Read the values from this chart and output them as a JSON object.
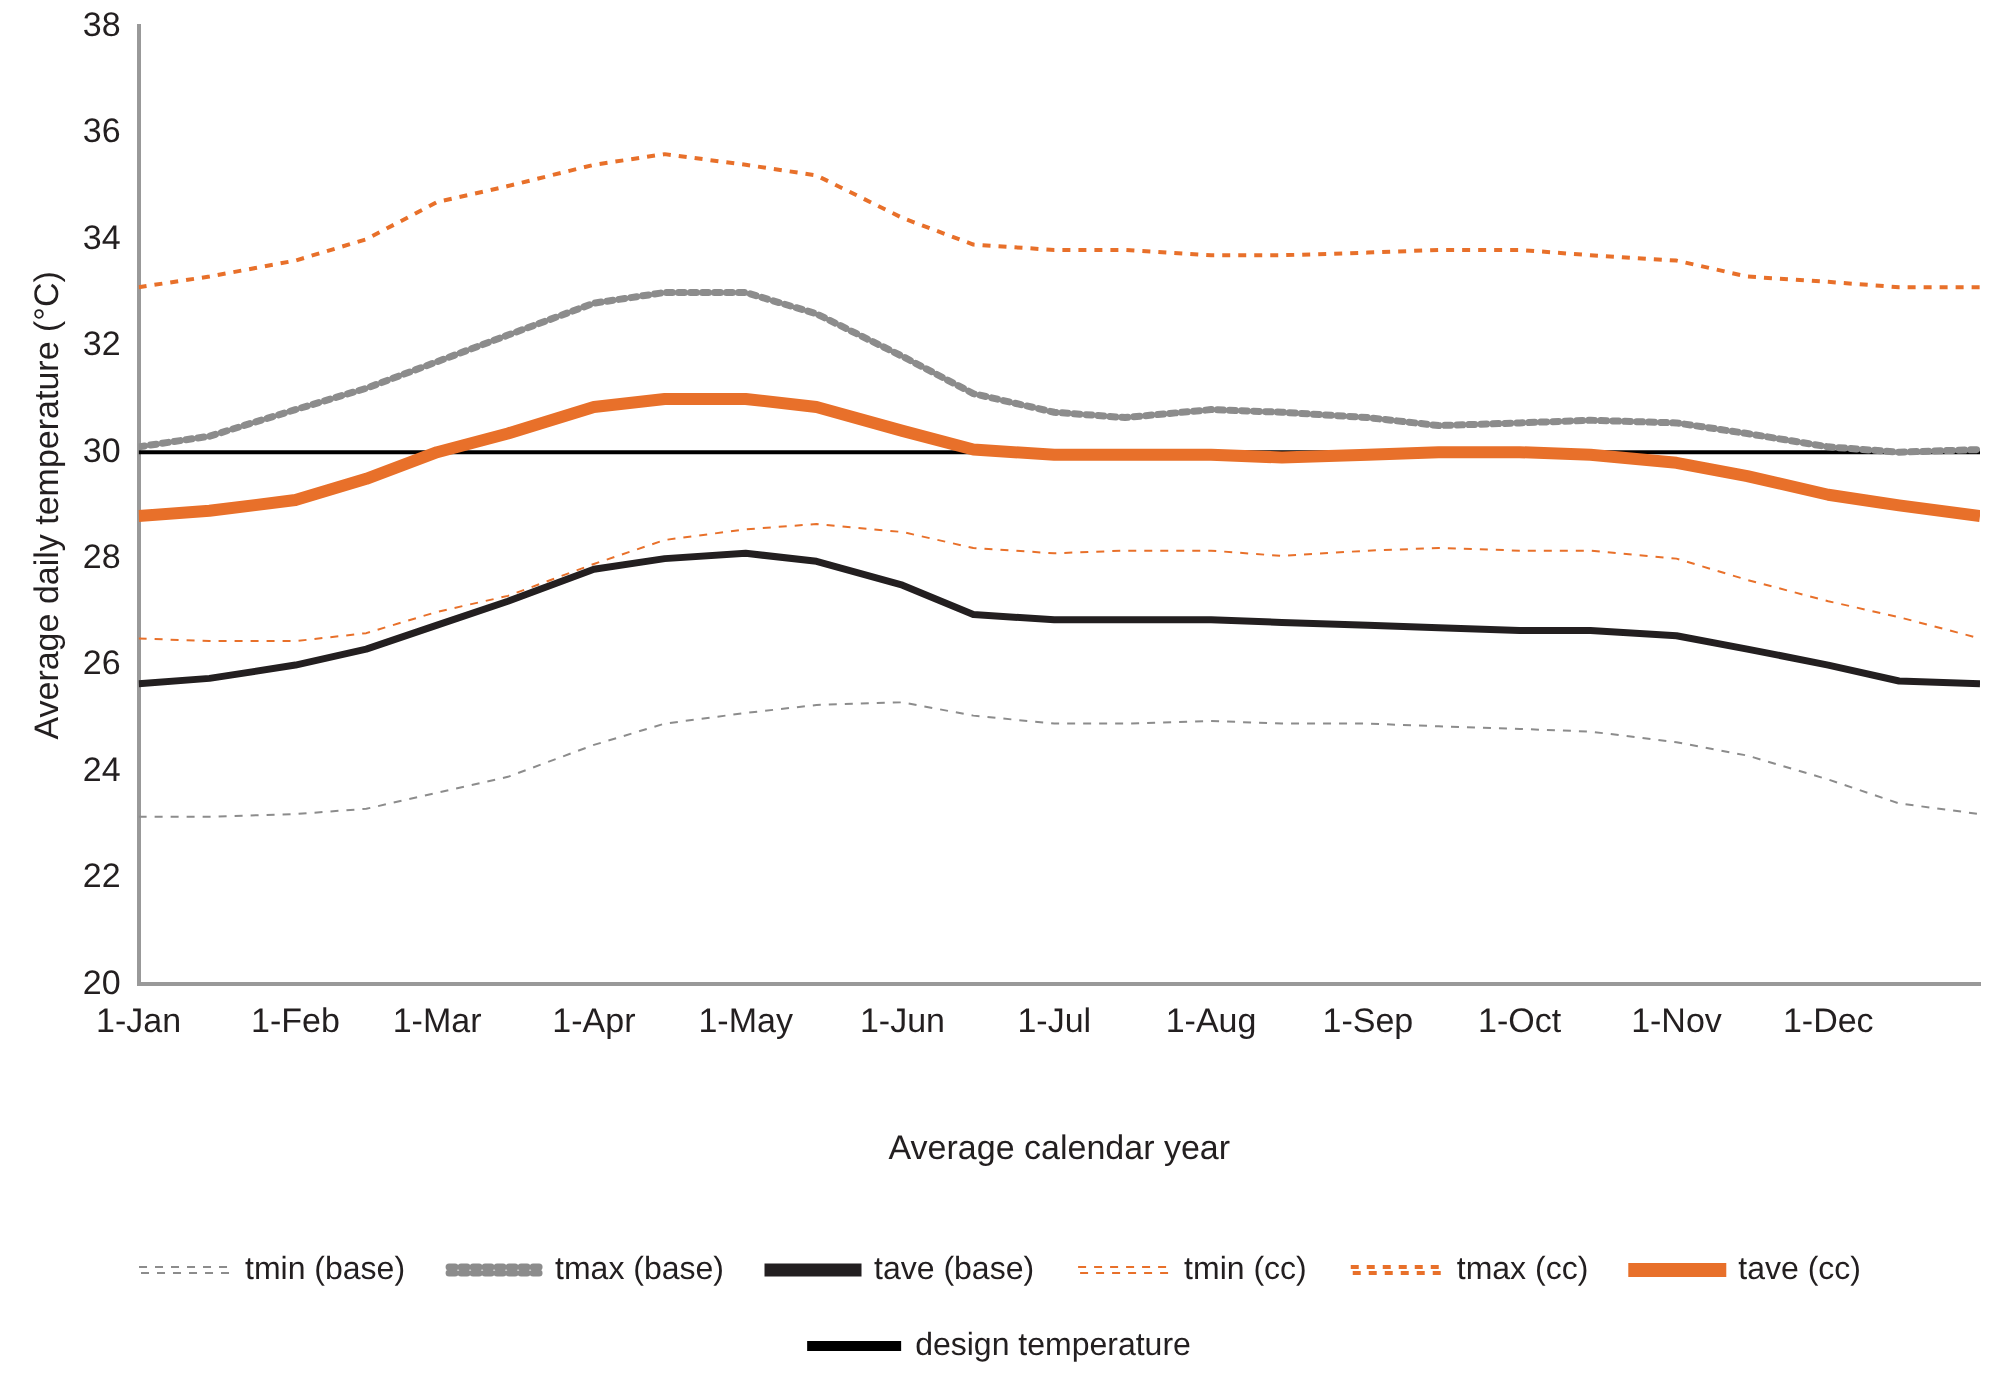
{
  "chart_data": {
    "type": "line",
    "xlabel": "Average calendar year",
    "ylabel": "Average daily temperature (°C)",
    "x": [
      "--01-01",
      "--01-15",
      "--02-01",
      "--02-15",
      "--03-01",
      "--03-15",
      "--04-01",
      "--04-15",
      "--05-01",
      "--05-15",
      "--06-01",
      "--06-15",
      "--07-01",
      "--07-15",
      "--08-01",
      "--08-15",
      "--09-01",
      "--09-15",
      "--10-01",
      "--10-15",
      "--11-01",
      "--11-15",
      "--12-01",
      "--12-15",
      "--12-31"
    ],
    "xlim": [
      "--01-01",
      "--12-31"
    ],
    "xticks": [
      {
        "value": "--01-01",
        "label": "1-Jan"
      },
      {
        "value": "--02-01",
        "label": "1-Feb"
      },
      {
        "value": "--03-01",
        "label": "1-Mar"
      },
      {
        "value": "--04-01",
        "label": "1-Apr"
      },
      {
        "value": "--05-01",
        "label": "1-May"
      },
      {
        "value": "--06-01",
        "label": "1-Jun"
      },
      {
        "value": "--07-01",
        "label": "1-Jul"
      },
      {
        "value": "--08-01",
        "label": "1-Aug"
      },
      {
        "value": "--09-01",
        "label": "1-Sep"
      },
      {
        "value": "--10-01",
        "label": "1-Oct"
      },
      {
        "value": "--11-01",
        "label": "1-Nov"
      },
      {
        "value": "--12-01",
        "label": "1-Dec"
      }
    ],
    "ylim": [
      20,
      38
    ],
    "yticks": [
      20,
      22,
      24,
      26,
      28,
      30,
      32,
      34,
      36,
      38
    ],
    "grid": false,
    "legend": "bottom",
    "marker": "none",
    "series": [
      {
        "name": "tmin (base)",
        "color": "#8c8c8c",
        "line_style": "dashed",
        "values": [
          23.15,
          23.15,
          23.2,
          23.3,
          23.6,
          23.9,
          24.5,
          24.9,
          25.1,
          25.25,
          25.3,
          25.05,
          24.9,
          24.9,
          24.95,
          24.9,
          24.9,
          24.85,
          24.8,
          24.75,
          24.55,
          24.3,
          23.85,
          23.4,
          23.2
        ]
      },
      {
        "name": "tmax (base)",
        "color": "#8c8c8c",
        "line_style": "dotted",
        "values": [
          30.1,
          30.3,
          30.8,
          31.2,
          31.7,
          32.2,
          32.8,
          33.0,
          33.0,
          32.6,
          31.8,
          31.1,
          30.75,
          30.65,
          30.8,
          30.75,
          30.65,
          30.5,
          30.55,
          30.6,
          30.55,
          30.35,
          30.1,
          30.0,
          30.05
        ]
      },
      {
        "name": "tave (base)",
        "color": "#231f20",
        "line_style": "solid",
        "values": [
          25.65,
          25.75,
          26.0,
          26.3,
          26.75,
          27.2,
          27.8,
          28.0,
          28.1,
          27.95,
          27.5,
          26.95,
          26.85,
          26.85,
          26.85,
          26.8,
          26.75,
          26.7,
          26.65,
          26.65,
          26.55,
          26.3,
          26.0,
          25.7,
          25.65
        ]
      },
      {
        "name": "tmin (cc)",
        "color": "#e8702a",
        "line_style": "dashed",
        "values": [
          26.5,
          26.45,
          26.45,
          26.6,
          27.0,
          27.3,
          27.9,
          28.35,
          28.55,
          28.65,
          28.5,
          28.2,
          28.1,
          28.15,
          28.15,
          28.05,
          28.15,
          28.2,
          28.15,
          28.15,
          28.0,
          27.6,
          27.2,
          26.9,
          26.5
        ]
      },
      {
        "name": "tmax (cc)",
        "color": "#e8702a",
        "line_style": "dashed",
        "values": [
          33.1,
          33.3,
          33.6,
          34.0,
          34.7,
          35.0,
          35.4,
          35.6,
          35.4,
          35.2,
          34.4,
          33.9,
          33.8,
          33.8,
          33.7,
          33.7,
          33.75,
          33.8,
          33.8,
          33.7,
          33.6,
          33.3,
          33.2,
          33.1,
          33.1
        ]
      },
      {
        "name": "tave (cc)",
        "color": "#e8702a",
        "line_style": "solid",
        "values": [
          28.8,
          28.9,
          29.1,
          29.5,
          30.0,
          30.35,
          30.85,
          31.0,
          31.0,
          30.85,
          30.4,
          30.05,
          29.95,
          29.95,
          29.95,
          29.9,
          29.95,
          30.0,
          30.0,
          29.95,
          29.8,
          29.55,
          29.2,
          29.0,
          28.8
        ]
      },
      {
        "name": "design temperature",
        "color": "#000000",
        "line_style": "solid",
        "x": [
          "--01-01",
          "--12-31"
        ],
        "values": [
          30,
          30
        ]
      }
    ]
  }
}
